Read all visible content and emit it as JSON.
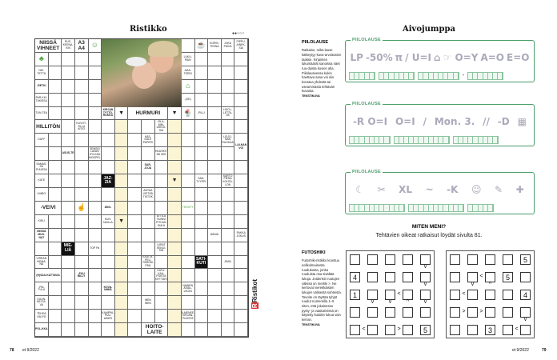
{
  "left_page": {
    "title": "Ristikko",
    "dots": "●●○○○",
    "page_number": "78",
    "issue": "et 9/2022",
    "logo": "Ristikot",
    "crossword": {
      "clues": [
        {
          "r": 0,
          "c": 0,
          "cs": 2,
          "t": "NIISSÄ VIHNEET",
          "k": "big"
        },
        {
          "r": 0,
          "c": 2,
          "t": "RUS-KEENA-KIN"
        },
        {
          "r": 0,
          "c": 3,
          "t": "A3 A4",
          "k": "big"
        },
        {
          "r": 0,
          "c": 4,
          "t": "☺",
          "k": "icon",
          "n": "face-icon"
        },
        {
          "r": 0,
          "c": 11,
          "t": ""
        },
        {
          "r": 0,
          "c": 12,
          "t": "☕",
          "k": "icon",
          "n": "cup-icon"
        },
        {
          "r": 0,
          "c": 13,
          "t": "KORIS-TEENA"
        },
        {
          "r": 0,
          "c": 14,
          "t": "JOKA PÄIVÄ"
        },
        {
          "r": 0,
          "c": 15,
          "t": "PIPPU-AINEK-SIA"
        },
        {
          "r": 1,
          "c": 0,
          "t": "♣",
          "k": "icon",
          "n": "plant-icon"
        },
        {
          "r": 1,
          "c": 11,
          "t": "LUKU-PÄIN"
        },
        {
          "r": 2,
          "c": 0,
          "t": "NEI-TETTÄ"
        },
        {
          "r": 2,
          "c": 11,
          "t": "-BAK-TEERI"
        },
        {
          "r": 3,
          "c": 0,
          "t": "-RETKI",
          "k": "b"
        },
        {
          "r": 3,
          "c": 11,
          "t": "⌂",
          "k": "icon",
          "n": "house-icon"
        },
        {
          "r": 4,
          "c": 0,
          "t": "PAR-KKI-TAKISSA"
        },
        {
          "r": 4,
          "c": 11,
          "t": "-(OK)"
        },
        {
          "r": 5,
          "c": 0,
          "t": "TUN-TEA"
        },
        {
          "r": 5,
          "c": 5,
          "t": "KIRJAN TYTTÖ-RUKKA",
          "k": "b"
        },
        {
          "r": 5,
          "c": 6,
          "t": "▼",
          "k": "arrow"
        },
        {
          "r": 5,
          "c": 7,
          "cs": 3,
          "t": "HURMURI",
          "k": "big"
        },
        {
          "r": 5,
          "c": 10,
          "t": "▼",
          "k": "arrow"
        },
        {
          "r": 5,
          "c": 11,
          "t": "🍨",
          "k": "icon",
          "n": "ice-cream-icon"
        },
        {
          "r": 5,
          "c": 12,
          "t": "-PILLI"
        },
        {
          "r": 5,
          "c": 14,
          "t": "HUOL-LETTA-VA"
        },
        {
          "r": 6,
          "c": 0,
          "cs": 2,
          "t": "HILLITÖN",
          "k": "big"
        },
        {
          "r": 6,
          "c": 3,
          "t": "KUVOT-TILLA AITIO"
        },
        {
          "r": 6,
          "c": 9,
          "t": "ISLA-MIN-USKOI-SIA"
        },
        {
          "r": 7,
          "c": 0,
          "t": "DUFF"
        },
        {
          "r": 7,
          "c": 8,
          "t": "KÄS-KÄLE PAPERI"
        },
        {
          "r": 7,
          "c": 14,
          "t": "LEIJO-NAN RUOKAA"
        },
        {
          "r": 7,
          "c": 15,
          "rs": 2,
          "t": "LAI-NAN VOI",
          "k": "b"
        },
        {
          "r": 8,
          "c": 2,
          "t": "ASUS-TE",
          "k": "b"
        },
        {
          "r": 8,
          "c": 4,
          "t": "SENSSI LAVAN HYLKÄÄ MOOPEL"
        },
        {
          "r": 8,
          "c": 9,
          "t": "HUUSKIT NS MIS"
        },
        {
          "r": 9,
          "c": 0,
          "t": "SAMAS-SA PUUSSA"
        },
        {
          "r": 9,
          "c": 8,
          "t": "SAR-JOJA",
          "k": "b"
        },
        {
          "r": 10,
          "c": 0,
          "t": "KATE"
        },
        {
          "r": 10,
          "c": 5,
          "t": "JAZ-ZIA",
          "k": "blk"
        },
        {
          "r": 10,
          "c": 10,
          "t": "▼",
          "k": "arrow"
        },
        {
          "r": 10,
          "c": 12,
          "t": "SÄÄ-TYYPPI"
        },
        {
          "r": 10,
          "c": 14,
          "t": "SARTO PIENA KOHTA-LON"
        },
        {
          "r": 11,
          "c": 0,
          "t": "LIMBO"
        },
        {
          "r": 11,
          "c": 8,
          "t": "ANTAA VIETÄÄ TIKTOK"
        },
        {
          "r": 12,
          "c": 0,
          "cs": 2,
          "t": "-VEIVI",
          "k": "big"
        },
        {
          "r": 12,
          "c": 3,
          "t": "☝",
          "k": "icon",
          "n": "finger-icon"
        },
        {
          "r": 12,
          "c": 5,
          "t": "ÄNG-",
          "k": "b"
        },
        {
          "r": 12,
          "c": 11,
          "t": "THOSTY",
          "k": "icon",
          "n": "shield-icon"
        },
        {
          "r": 13,
          "c": 0,
          "t": "KIELI"
        },
        {
          "r": 13,
          "c": 5,
          "t": "KUH-NAILLA"
        },
        {
          "r": 13,
          "c": 6,
          "t": "▼",
          "k": "arrow"
        },
        {
          "r": 13,
          "c": 9,
          "t": "ATTILA HUNNI PITUUN SUKU"
        },
        {
          "r": 14,
          "c": 0,
          "t": "NIISSÄ MUO-NAT",
          "k": "b"
        },
        {
          "r": 14,
          "c": 13,
          "t": "ÄÄNIÄ"
        },
        {
          "r": 14,
          "c": 15,
          "t": "PAKKA JOKUS"
        },
        {
          "r": 15,
          "c": 2,
          "t": "MIE-LIÄ",
          "k": "blk"
        },
        {
          "r": 15,
          "c": 4,
          "t": "TOP Pa"
        },
        {
          "r": 15,
          "c": 9,
          "t": "LIIRAT SEKAI-SIN"
        },
        {
          "r": 16,
          "c": 0,
          "t": "VIRRAN VIEMÄ-NÄ"
        },
        {
          "r": 16,
          "c": 8,
          "t": "KAATOI-PELI PARODI PÄÄ"
        },
        {
          "r": 16,
          "c": 12,
          "t": "SATI-KUTI",
          "k": "blk"
        },
        {
          "r": 16,
          "c": 14,
          "t": "JEAN"
        },
        {
          "r": 17,
          "c": 0,
          "cs": 2,
          "t": "(H)SAU-KATTAVIA",
          "k": "b"
        },
        {
          "r": 17,
          "c": 3,
          "t": "-PUU BILLY",
          "k": "b"
        },
        {
          "r": 17,
          "c": 9,
          "t": "KATU-KAU-POISTA NYTTÄRI"
        },
        {
          "r": 18,
          "c": 0,
          "t": "-PAI-TULU"
        },
        {
          "r": 18,
          "c": 5,
          "t": "KOVA-NIMIÄ",
          "k": "b"
        },
        {
          "r": 18,
          "c": 11,
          "t": "NAINEN ASIAL-LIKON"
        },
        {
          "r": 19,
          "c": 0,
          "t": "KUUN-NELTA-VA"
        },
        {
          "r": 19,
          "c": 8,
          "t": "INEN INEN"
        },
        {
          "r": 20,
          "c": 0,
          "t": "TEHDÄ HÄJYÄ"
        },
        {
          "r": 20,
          "c": 5,
          "t": "KAMPPA-PUU-AINES"
        },
        {
          "r": 20,
          "c": 11,
          "t": "ILMENEE KIRJAN-PUOSTA"
        },
        {
          "r": 21,
          "c": 0,
          "t": "POL-KKA",
          "k": "b"
        },
        {
          "r": 21,
          "c": 8,
          "cs": 2,
          "t": "HOITO-LAITE",
          "k": "big"
        }
      ]
    }
  },
  "right_page": {
    "title": "Aivojumppa",
    "page_number": "79",
    "issue": "et 9/2022",
    "piilolause": {
      "heading": "PIILOLAUSE",
      "text": "Ratkaise, mikä lause kätkeytyy kuva-arvoitusten taakse. Kirjainten lukumäärät sanoissa näet ruu-duista kuvien alla. Piilolauseessa kukin haettava sana voi siis koostua yhdestä tai useammasta tehtävän kuvasta.",
      "credit": "TEKSTIKUVA",
      "puzzles": [
        {
          "label": "PIILOLAUSE",
          "pics": [
            "LP",
            "-50%",
            "π",
            "/ U=I",
            "⌂",
            "☞ O=Y",
            "A=O",
            "E=O"
          ],
          "groups": [
            5,
            7,
            8,
            7
          ],
          "dash_after": 2
        },
        {
          "label": "PIILOLAUSE",
          "pics": [
            "-R O=I",
            "O=I",
            "/",
            "Mon. 3.",
            "//",
            "-D",
            "▦"
          ],
          "groups": [
            8,
            11,
            9
          ]
        },
        {
          "label": "PIILOLAUSE",
          "pics": [
            "☾",
            "✂",
            "XL",
            "~",
            "-K",
            "☺",
            "✎",
            "✚"
          ],
          "groups": [
            11,
            11,
            5
          ]
        }
      ]
    },
    "results": {
      "heading": "MITEN MENI?",
      "text": "Tehtävien oikeat ratkaisut löydät sivulta 81."
    },
    "futoshiki": {
      "heading": "FUTOSHIKI",
      "text": "Futoshiki-ristikko koostuu nelikulmaisesta ruudukosta, jonka ruuduista osa sisältää lukuja. Joidenkin ruutujen välissä on merkki >. Ne kertovat vierekkäisten lukujen välisestä suhteista. Tavoite on täyttää tyhjät ruudut numeroilla 1–5 siten, että jokaisessa pysty- ja vaakarivissä on käytetty kutakin lukua vain kerran.",
      "credit": "TEKSTIKUVA",
      "grids": [
        {
          "values": [
            [
              "",
              "",
              "",
              "",
              ""
            ],
            [
              "4",
              "",
              "",
              "",
              ""
            ],
            [
              "1",
              "",
              "",
              "",
              ""
            ],
            [
              "",
              "",
              "",
              "",
              ""
            ],
            [
              "",
              "",
              "",
              "",
              "5"
            ]
          ],
          "h": [
            {
              "r": 2,
              "c": 2,
              "s": "<"
            },
            {
              "r": 4,
              "c": 0,
              "s": "<"
            },
            {
              "r": 4,
              "c": 2,
              "s": ">"
            }
          ],
          "v": [
            {
              "r": 0,
              "c": 4,
              "s": "v"
            },
            {
              "r": 1,
              "c": 4,
              "s": "v"
            },
            {
              "r": 2,
              "c": 1,
              "s": "v"
            },
            {
              "r": 2,
              "c": 2,
              "s": "v"
            },
            {
              "r": 2,
              "c": 3,
              "s": "^"
            },
            {
              "r": 2,
              "c": 4,
              "s": "v"
            }
          ]
        },
        {
          "values": [
            [
              "",
              "",
              "",
              "",
              "5"
            ],
            [
              "",
              "",
              "",
              "5",
              ""
            ],
            [
              "",
              "",
              "",
              "",
              "4"
            ],
            [
              "",
              "",
              "",
              "",
              ""
            ],
            [
              "",
              "",
              "3",
              "",
              ""
            ]
          ],
          "h": [
            {
              "r": 1,
              "c": 1,
              "s": "<"
            },
            {
              "r": 2,
              "c": 0,
              "s": "<"
            },
            {
              "r": 3,
              "c": 0,
              "s": ">"
            },
            {
              "r": 3,
              "c": 1,
              "s": ">"
            },
            {
              "r": 4,
              "c": 3,
              "s": "<"
            }
          ],
          "v": [
            {
              "r": 1,
              "c": 1,
              "s": "v"
            },
            {
              "r": 1,
              "c": 2,
              "s": "^"
            },
            {
              "r": 3,
              "c": 4,
              "s": "v"
            }
          ]
        }
      ]
    }
  }
}
